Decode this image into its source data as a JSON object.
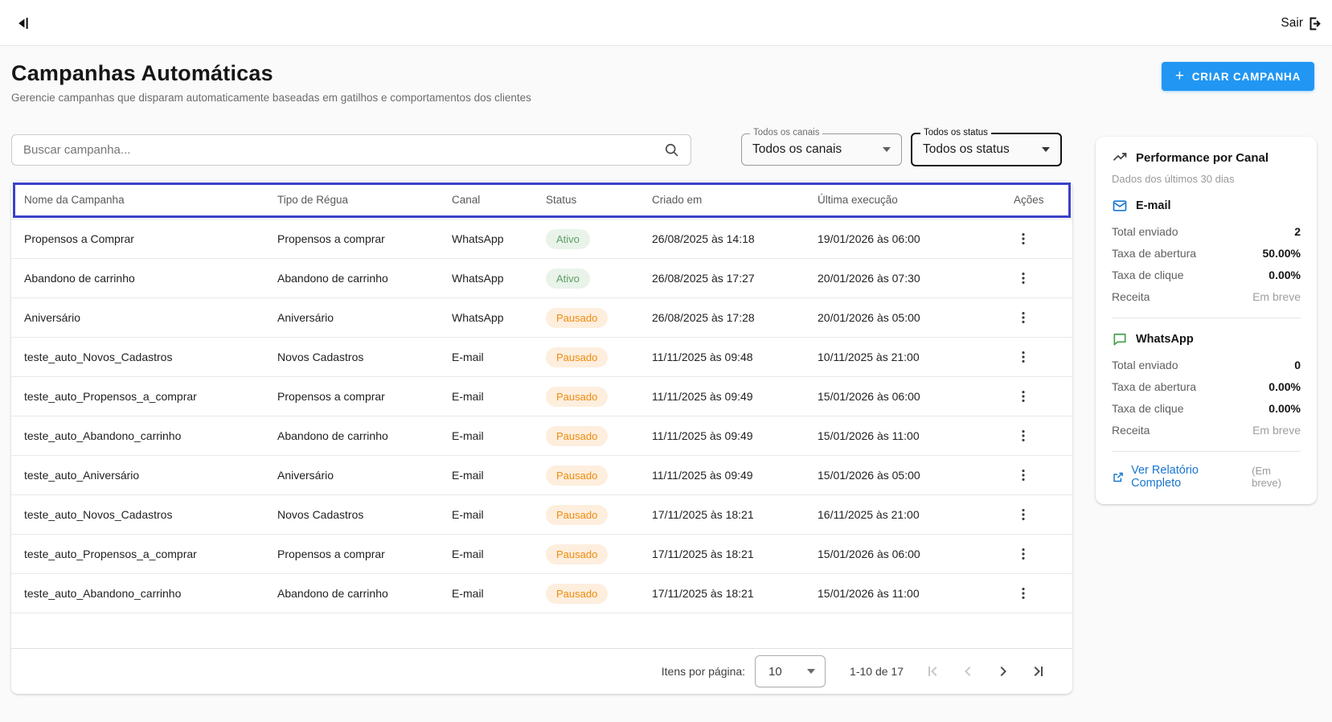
{
  "topbar": {
    "logout_label": "Sair"
  },
  "page": {
    "title": "Campanhas Automáticas",
    "subtitle": "Gerencie campanhas que disparam automaticamente baseadas em gatilhos e comportamentos dos clientes",
    "create_button": "CRIAR CAMPANHA"
  },
  "icons": {
    "plus": "+"
  },
  "filters": {
    "search_placeholder": "Buscar campanha...",
    "channel_select": {
      "label": "Todos os canais",
      "value": "Todos os canais"
    },
    "status_select": {
      "label": "Todos os status",
      "value": "Todos os status"
    }
  },
  "table": {
    "columns": [
      "Nome da Campanha",
      "Tipo de Régua",
      "Canal",
      "Status",
      "Criado em",
      "Última execução",
      "Ações"
    ],
    "status_styles": {
      "Ativo": {
        "bg": "#e9f3ea",
        "fg": "#5f9e66"
      },
      "Pausado": {
        "bg": "#fdeede",
        "fg": "#ef8c0e"
      }
    },
    "rows": [
      {
        "name": "Propensos a Comprar",
        "type": "Propensos a comprar",
        "channel": "WhatsApp",
        "status": "Ativo",
        "created": "26/08/2025 às 14:18",
        "last_run": "19/01/2026 às 06:00"
      },
      {
        "name": "Abandono de carrinho",
        "type": "Abandono de carrinho",
        "channel": "WhatsApp",
        "status": "Ativo",
        "created": "26/08/2025 às 17:27",
        "last_run": "20/01/2026 às 07:30"
      },
      {
        "name": "Aniversário",
        "type": "Aniversário",
        "channel": "WhatsApp",
        "status": "Pausado",
        "created": "26/08/2025 às 17:28",
        "last_run": "20/01/2026 às 05:00"
      },
      {
        "name": "teste_auto_Novos_Cadastros",
        "type": "Novos Cadastros",
        "channel": "E-mail",
        "status": "Pausado",
        "created": "11/11/2025 às 09:48",
        "last_run": "10/11/2025 às 21:00"
      },
      {
        "name": "teste_auto_Propensos_a_comprar",
        "type": "Propensos a comprar",
        "channel": "E-mail",
        "status": "Pausado",
        "created": "11/11/2025 às 09:49",
        "last_run": "15/01/2026 às 06:00"
      },
      {
        "name": "teste_auto_Abandono_carrinho",
        "type": "Abandono de carrinho",
        "channel": "E-mail",
        "status": "Pausado",
        "created": "11/11/2025 às 09:49",
        "last_run": "15/01/2026 às 11:00"
      },
      {
        "name": "teste_auto_Aniversário",
        "type": "Aniversário",
        "channel": "E-mail",
        "status": "Pausado",
        "created": "11/11/2025 às 09:49",
        "last_run": "15/01/2026 às 05:00"
      },
      {
        "name": "teste_auto_Novos_Cadastros",
        "type": "Novos Cadastros",
        "channel": "E-mail",
        "status": "Pausado",
        "created": "17/11/2025 às 18:21",
        "last_run": "16/11/2025 às 21:00"
      },
      {
        "name": "teste_auto_Propensos_a_comprar",
        "type": "Propensos a comprar",
        "channel": "E-mail",
        "status": "Pausado",
        "created": "17/11/2025 às 18:21",
        "last_run": "15/01/2026 às 06:00"
      },
      {
        "name": "teste_auto_Abandono_carrinho",
        "type": "Abandono de carrinho",
        "channel": "E-mail",
        "status": "Pausado",
        "created": "17/11/2025 às 18:21",
        "last_run": "15/01/2026 às 11:00"
      }
    ]
  },
  "pagination": {
    "items_per_page_label": "Itens por página:",
    "items_per_page": "10",
    "range": "1-10 de 17"
  },
  "performance": {
    "title": "Performance por Canal",
    "subtitle": "Dados dos últimos 30 dias",
    "channels": [
      {
        "name": "E-mail",
        "icon": "mail-icon",
        "metrics": [
          {
            "label": "Total enviado",
            "value": "2",
            "muted": false
          },
          {
            "label": "Taxa de abertura",
            "value": "50.00%",
            "muted": false
          },
          {
            "label": "Taxa de clique",
            "value": "0.00%",
            "muted": false
          },
          {
            "label": "Receita",
            "value": "Em breve",
            "muted": true
          }
        ]
      },
      {
        "name": "WhatsApp",
        "icon": "chat-icon",
        "metrics": [
          {
            "label": "Total enviado",
            "value": "0",
            "muted": false
          },
          {
            "label": "Taxa de abertura",
            "value": "0.00%",
            "muted": false
          },
          {
            "label": "Taxa de clique",
            "value": "0.00%",
            "muted": false
          },
          {
            "label": "Receita",
            "value": "Em breve",
            "muted": true
          }
        ]
      }
    ],
    "report_link": "Ver Relatório Completo",
    "report_note": "(Em breve)"
  },
  "colors": {
    "accent_blue": "#2196f3",
    "highlight_box": "#3a41c8",
    "link_blue": "#1976d2",
    "mail_icon": "#1976d2",
    "whatsapp_icon": "#43a047"
  }
}
